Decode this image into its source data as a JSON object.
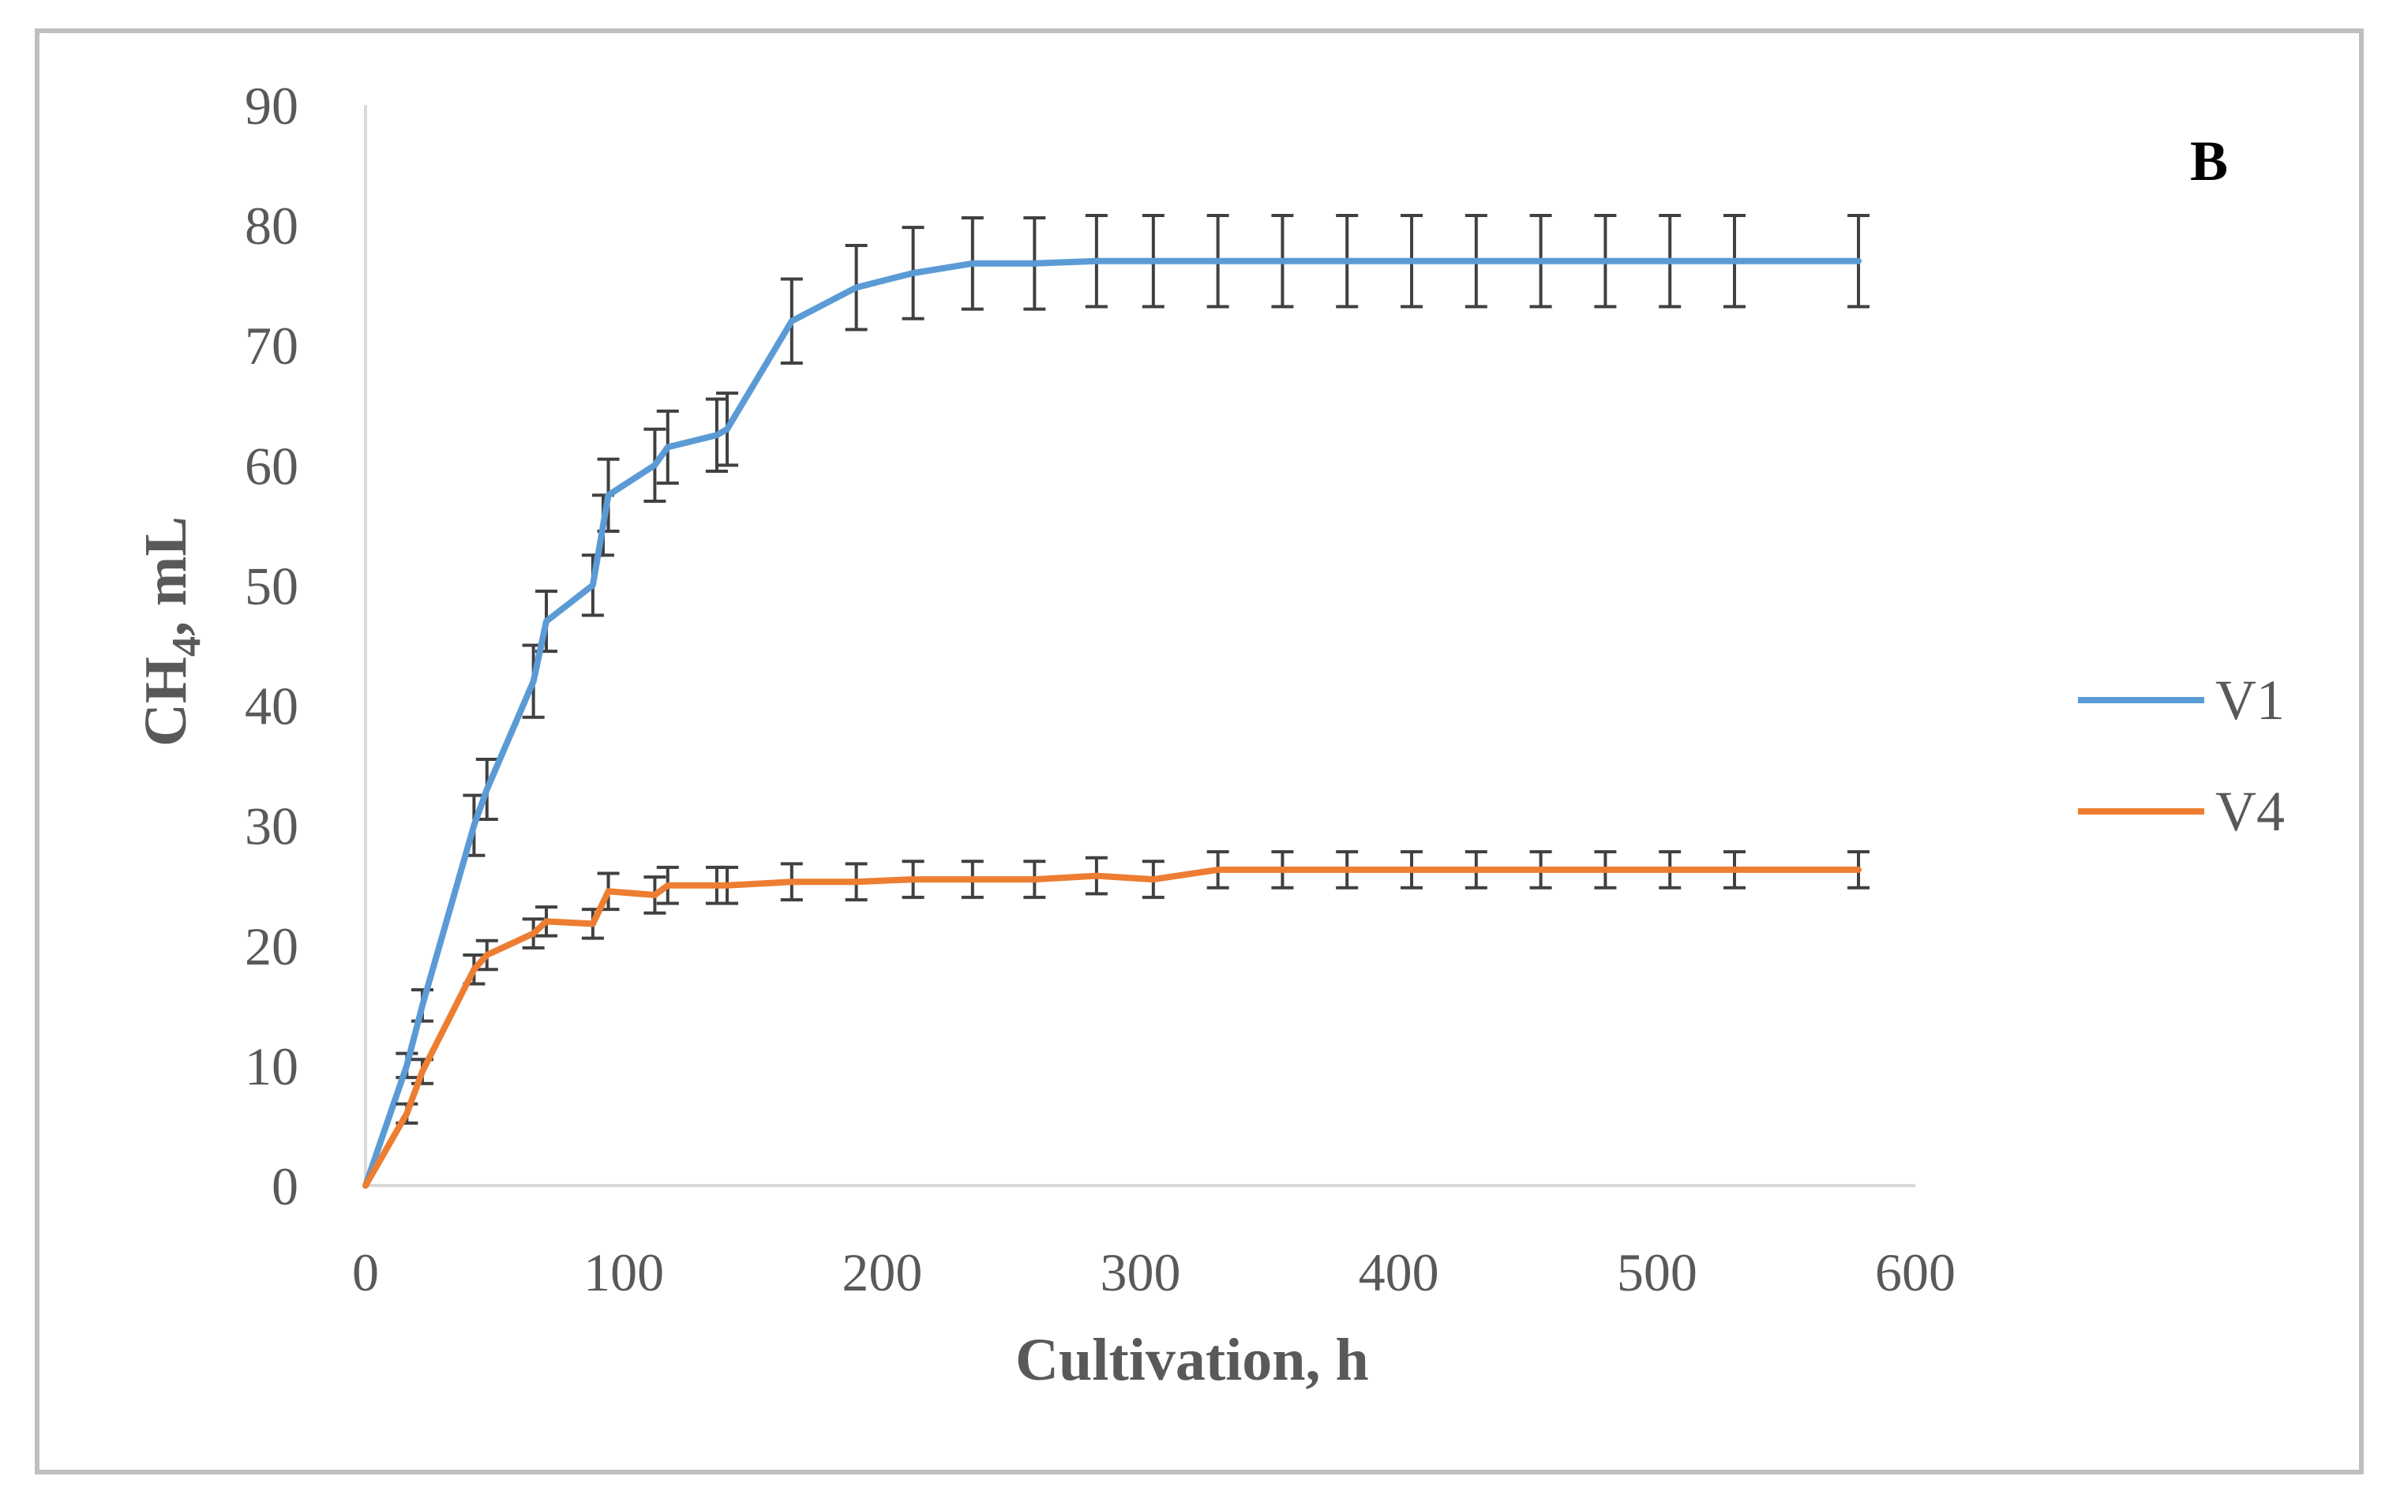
{
  "chart_data": {
    "type": "line",
    "panel_label": "B",
    "xlabel": "Cultivation, h",
    "ylabel": {
      "main": "CH",
      "sub": "4",
      "rest": ", mL"
    },
    "xlim": [
      0,
      600
    ],
    "ylim": [
      0,
      90
    ],
    "xticks": [
      0,
      100,
      200,
      300,
      400,
      500,
      600
    ],
    "yticks": [
      0,
      10,
      20,
      30,
      40,
      50,
      60,
      70,
      80,
      90
    ],
    "grid": false,
    "legend": "right",
    "series": [
      {
        "name": "V1",
        "color": "#5b9bd5",
        "points": [
          [
            0,
            0,
            0
          ],
          [
            16,
            10,
            1
          ],
          [
            22,
            15,
            1.3
          ],
          [
            42,
            30,
            2.5
          ],
          [
            47,
            33,
            2.5
          ],
          [
            65,
            42,
            3
          ],
          [
            70,
            47,
            2.5
          ],
          [
            88,
            50,
            2.5
          ],
          [
            92,
            55,
            2.5
          ],
          [
            94,
            57.5,
            3
          ],
          [
            112,
            60,
            3
          ],
          [
            117,
            61.5,
            3
          ],
          [
            136,
            62.5,
            3
          ],
          [
            140,
            63,
            3
          ],
          [
            165,
            72,
            3.5
          ],
          [
            190,
            74.8,
            3.5
          ],
          [
            212,
            76,
            3.8
          ],
          [
            235,
            76.8,
            3.8
          ],
          [
            259,
            76.8,
            3.8
          ],
          [
            283,
            77,
            3.8
          ],
          [
            305,
            77,
            3.8
          ],
          [
            330,
            77,
            3.8
          ],
          [
            355,
            77,
            3.8
          ],
          [
            380,
            77,
            3.8
          ],
          [
            405,
            77,
            3.8
          ],
          [
            430,
            77,
            3.8
          ],
          [
            455,
            77,
            3.8
          ],
          [
            480,
            77,
            3.8
          ],
          [
            505,
            77,
            3.8
          ],
          [
            530,
            77,
            3.8
          ],
          [
            578,
            77,
            3.8
          ]
        ]
      },
      {
        "name": "V4",
        "color": "#ed7d31",
        "points": [
          [
            0,
            0,
            0
          ],
          [
            16,
            6,
            0.8
          ],
          [
            22,
            9.5,
            1
          ],
          [
            42,
            18,
            1.2
          ],
          [
            47,
            19.2,
            1.2
          ],
          [
            65,
            21,
            1.2
          ],
          [
            70,
            22,
            1.2
          ],
          [
            88,
            21.8,
            1.2
          ],
          [
            94,
            24.5,
            1.5
          ],
          [
            112,
            24.2,
            1.5
          ],
          [
            117,
            25,
            1.5
          ],
          [
            136,
            25,
            1.5
          ],
          [
            140,
            25,
            1.5
          ],
          [
            165,
            25.3,
            1.5
          ],
          [
            190,
            25.3,
            1.5
          ],
          [
            212,
            25.5,
            1.5
          ],
          [
            235,
            25.5,
            1.5
          ],
          [
            259,
            25.5,
            1.5
          ],
          [
            283,
            25.8,
            1.5
          ],
          [
            305,
            25.5,
            1.5
          ],
          [
            330,
            26.3,
            1.5
          ],
          [
            355,
            26.3,
            1.5
          ],
          [
            380,
            26.3,
            1.5
          ],
          [
            405,
            26.3,
            1.5
          ],
          [
            430,
            26.3,
            1.5
          ],
          [
            455,
            26.3,
            1.5
          ],
          [
            480,
            26.3,
            1.5
          ],
          [
            505,
            26.3,
            1.5
          ],
          [
            530,
            26.3,
            1.5
          ],
          [
            578,
            26.3,
            1.5
          ]
        ]
      }
    ]
  }
}
